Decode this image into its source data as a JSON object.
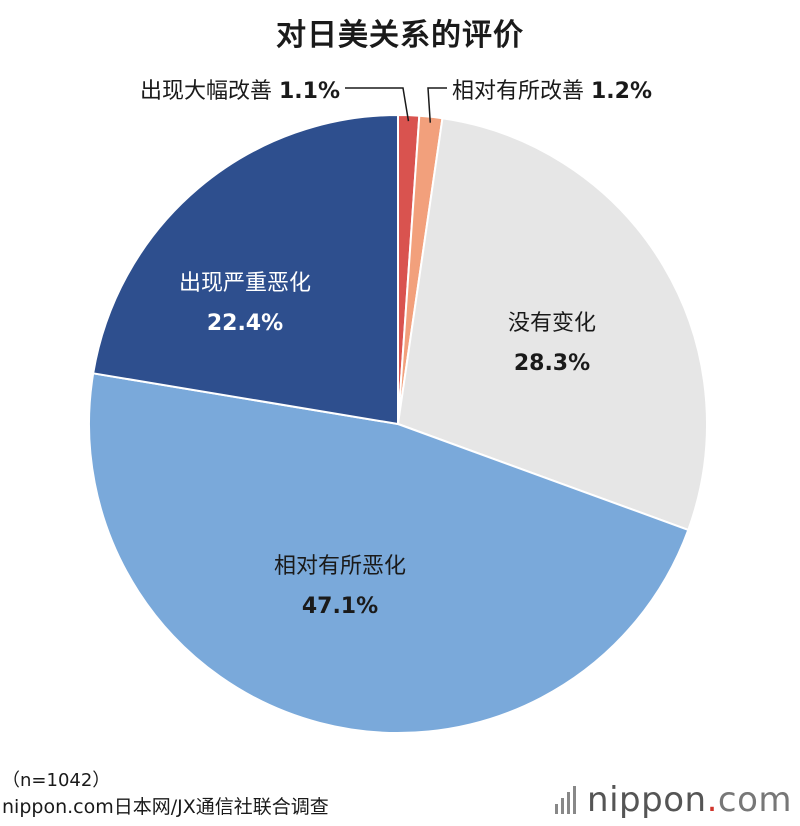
{
  "title": "对日美关系的评价",
  "chart_data": {
    "type": "pie",
    "title": "对日美关系的评价",
    "slices": [
      {
        "label": "出现大幅改善",
        "value": 1.1,
        "value_label": "1.1%",
        "color": "#d9534f"
      },
      {
        "label": "相对有所改善",
        "value": 1.2,
        "value_label": "1.2%",
        "color": "#f2a07c"
      },
      {
        "label": "没有变化",
        "value": 28.3,
        "value_label": "28.3%",
        "color": "#e6e6e6"
      },
      {
        "label": "相对有所恶化",
        "value": 47.1,
        "value_label": "47.1%",
        "color": "#7aa9da"
      },
      {
        "label": "出现严重恶化",
        "value": 22.4,
        "value_label": "22.4%",
        "color": "#2e4f8e"
      }
    ],
    "start_angle_deg": 0,
    "direction": "clockwise"
  },
  "footer": {
    "sample": "（n=1042）",
    "source": "nippon.com日本网/JX通信社联合调查"
  },
  "logo": {
    "name": "nippon",
    "dot": ".",
    "suffix": "com"
  }
}
